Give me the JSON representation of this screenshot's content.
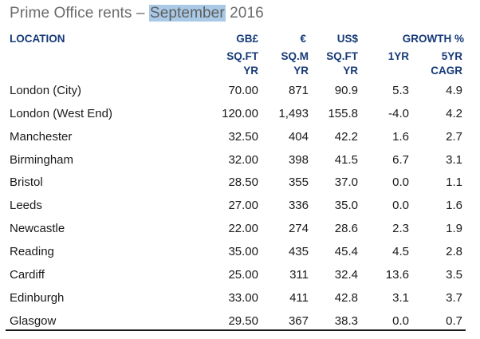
{
  "title": {
    "before": "Prime Office rents – ",
    "highlight": "September",
    "after": " 2016"
  },
  "headers": {
    "location": "LOCATION",
    "gbp": [
      "GB£",
      "SQ.FT",
      "YR"
    ],
    "eur": [
      "€",
      "SQ.M",
      "YR"
    ],
    "usd": [
      "US$",
      "SQ.FT",
      "YR"
    ],
    "growth": "GROWTH %",
    "one_yr": "1YR",
    "five_yr": [
      "5YR",
      "CAGR"
    ]
  },
  "rows": [
    {
      "location": "London (City)",
      "gbp": "70.00",
      "eur": "871",
      "usd": "90.9",
      "one_yr": "5.3",
      "five_yr": "4.9"
    },
    {
      "location": "London (West End)",
      "gbp": "120.00",
      "eur": "1,493",
      "usd": "155.8",
      "one_yr": "-4.0",
      "five_yr": "4.2"
    },
    {
      "location": "Manchester",
      "gbp": "32.50",
      "eur": "404",
      "usd": "42.2",
      "one_yr": "1.6",
      "five_yr": "2.7"
    },
    {
      "location": "Birmingham",
      "gbp": "32.00",
      "eur": "398",
      "usd": "41.5",
      "one_yr": "6.7",
      "five_yr": "3.1"
    },
    {
      "location": "Bristol",
      "gbp": "28.50",
      "eur": "355",
      "usd": "37.0",
      "one_yr": "0.0",
      "five_yr": "1.1"
    },
    {
      "location": "Leeds",
      "gbp": "27.00",
      "eur": "336",
      "usd": "35.0",
      "one_yr": "0.0",
      "five_yr": "1.6"
    },
    {
      "location": "Newcastle",
      "gbp": "22.00",
      "eur": "274",
      "usd": "28.6",
      "one_yr": "2.3",
      "five_yr": "1.9"
    },
    {
      "location": "Reading",
      "gbp": "35.00",
      "eur": "435",
      "usd": "45.4",
      "one_yr": "4.5",
      "five_yr": "2.8"
    },
    {
      "location": "Cardiff",
      "gbp": "25.00",
      "eur": "311",
      "usd": "32.4",
      "one_yr": "13.6",
      "five_yr": "3.5"
    },
    {
      "location": "Edinburgh",
      "gbp": "33.00",
      "eur": "411",
      "usd": "42.8",
      "one_yr": "3.1",
      "five_yr": "3.7"
    },
    {
      "location": "Glasgow",
      "gbp": "29.50",
      "eur": "367",
      "usd": "38.3",
      "one_yr": "0.0",
      "five_yr": "0.7"
    }
  ],
  "colors": {
    "header_text": "#163a78",
    "title_text": "#6b6b6b",
    "highlight": "#a9c9e6"
  }
}
